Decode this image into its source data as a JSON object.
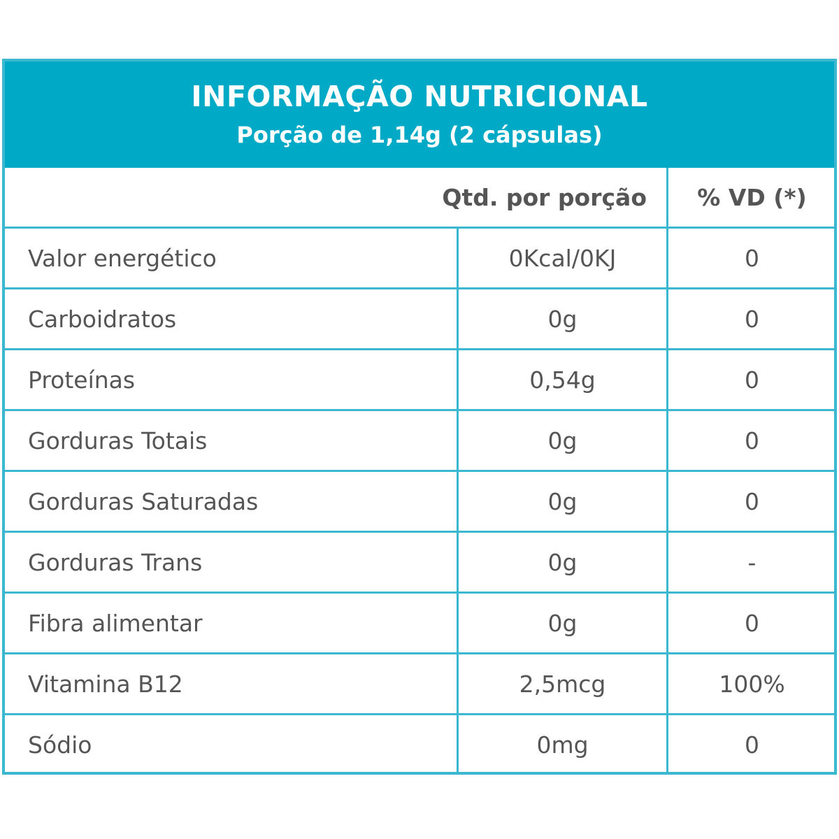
{
  "header": {
    "title": "INFORMAÇÃO NUTRICIONAL",
    "subtitle": "Porção de 1,14g (2 cápsulas)"
  },
  "columns": {
    "name": "",
    "qty": "Qtd. por porção",
    "vd": "% VD (*)"
  },
  "rows": [
    {
      "name": "Valor energético",
      "qty": "0Kcal/0KJ",
      "vd": "0"
    },
    {
      "name": "Carboidratos",
      "qty": "0g",
      "vd": "0"
    },
    {
      "name": "Proteínas",
      "qty": "0,54g",
      "vd": "0"
    },
    {
      "name": "Gorduras Totais",
      "qty": "0g",
      "vd": "0"
    },
    {
      "name": "Gorduras Saturadas",
      "qty": "0g",
      "vd": "0"
    },
    {
      "name": "Gorduras Trans",
      "qty": "0g",
      "vd": "-"
    },
    {
      "name": "Fibra alimentar",
      "qty": "0g",
      "vd": "0"
    },
    {
      "name": "Vitamina B12",
      "qty": "2,5mcg",
      "vd": "100%"
    },
    {
      "name": "Sódio",
      "qty": "0mg",
      "vd": "0"
    }
  ],
  "colors": {
    "header_bg": "#00a9c6",
    "border": "#3bb7cf",
    "text": "#555555"
  }
}
